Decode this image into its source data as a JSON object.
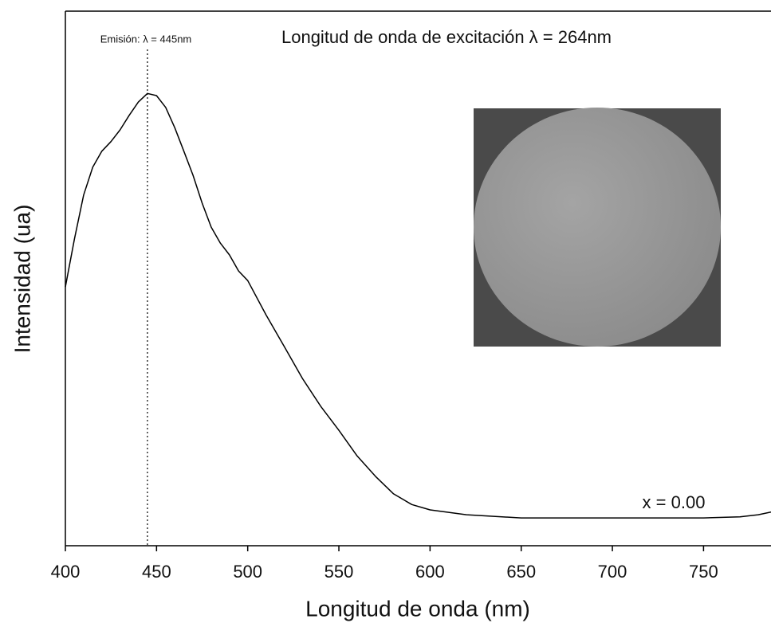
{
  "chart_data": {
    "type": "line",
    "title": "Longitud de onda de excitación λ = 264nm",
    "annotation": "Emisión:  λ  = 445nm",
    "emission_peak": 445,
    "sample_label": "x = 0.00",
    "x_label": "Longitud de onda (nm)",
    "y_label": "Intensidad (ua)",
    "x": [
      400,
      405,
      410,
      415,
      420,
      425,
      430,
      435,
      440,
      445,
      450,
      455,
      460,
      465,
      470,
      475,
      480,
      485,
      490,
      495,
      500,
      510,
      520,
      530,
      540,
      550,
      560,
      570,
      580,
      590,
      600,
      620,
      650,
      700,
      750,
      770,
      780,
      787
    ],
    "values": [
      0.484,
      0.574,
      0.656,
      0.708,
      0.738,
      0.756,
      0.778,
      0.805,
      0.83,
      0.846,
      0.842,
      0.82,
      0.782,
      0.738,
      0.693,
      0.641,
      0.596,
      0.566,
      0.544,
      0.514,
      0.496,
      0.432,
      0.373,
      0.313,
      0.261,
      0.216,
      0.168,
      0.13,
      0.097,
      0.077,
      0.067,
      0.058,
      0.052,
      0.052,
      0.052,
      0.054,
      0.058,
      0.063
    ],
    "color": "#000000",
    "xlim": [
      400,
      787
    ],
    "ylim": [
      0,
      1
    ],
    "xticks": [
      400,
      450,
      500,
      550,
      600,
      650,
      700,
      750
    ]
  }
}
